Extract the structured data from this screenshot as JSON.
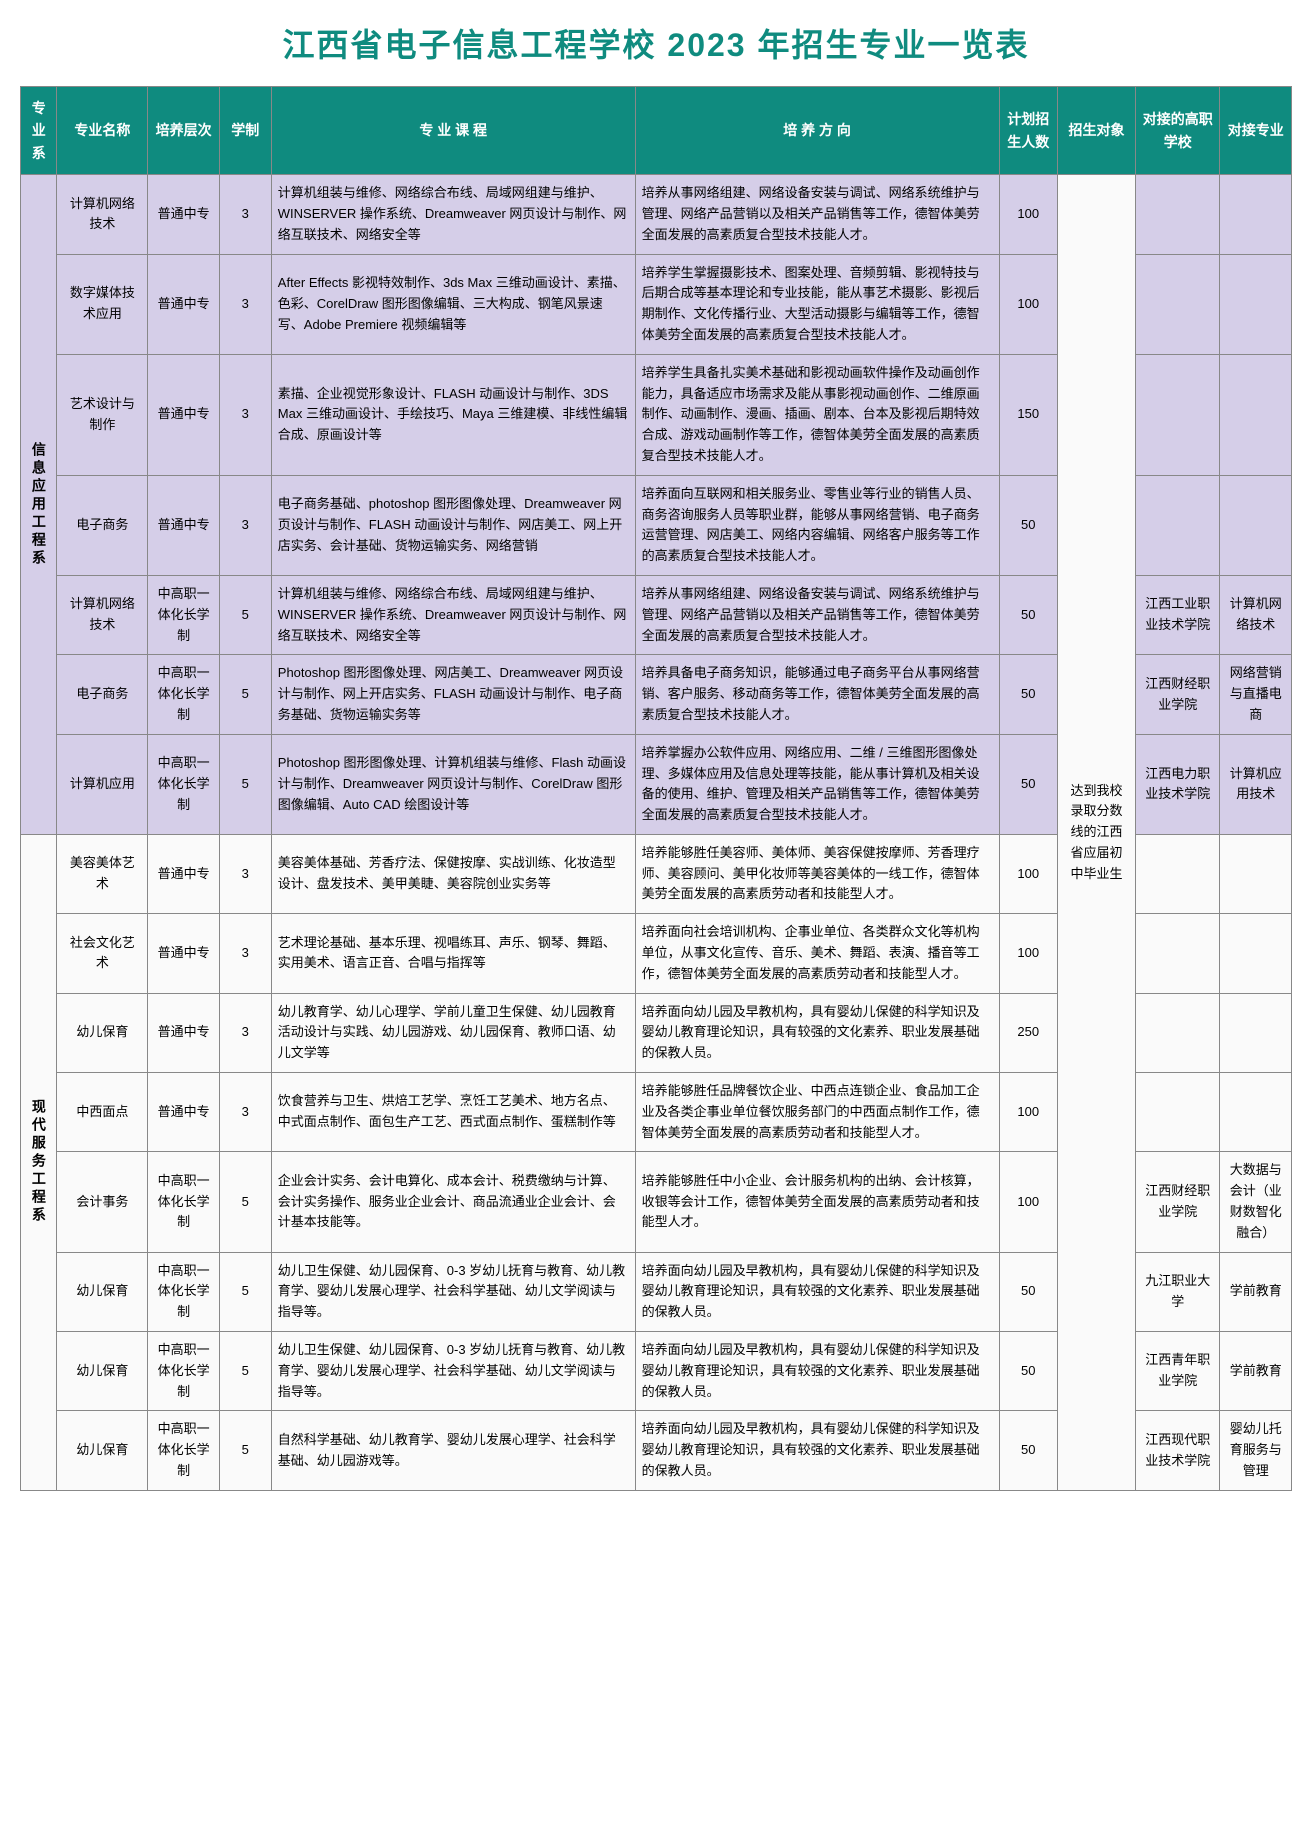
{
  "title": "江西省电子信息工程学校 2023 年招生专业一览表",
  "colors": {
    "header_bg": "#0f8b7f",
    "header_fg": "#ffffff",
    "title_color": "#0f8b7f",
    "section1_bg": "#d5cee8",
    "section2_bg": "#fafafa",
    "border": "#888888"
  },
  "headers": {
    "dept": "专业系",
    "major": "专业名称",
    "level": "培养层次",
    "years": "学制",
    "courses": "专 业 课 程",
    "direction": "培 养 方 向",
    "count": "计划招生人数",
    "target": "招生对象",
    "college": "对接的高职学校",
    "connect": "对接专业"
  },
  "target_text": "达到我校录取分数线的江西省应届初中毕业生",
  "dept1": "信息应用工程系",
  "dept2": "现代服务工程系",
  "rows1": [
    {
      "major": "计算机网络技术",
      "level": "普通中专",
      "years": "3",
      "courses": "计算机组装与维修、网络综合布线、局域网组建与维护、WINSERVER 操作系统、Dreamweaver 网页设计与制作、网络互联技术、网络安全等",
      "direction": "培养从事网络组建、网络设备安装与调试、网络系统维护与管理、网络产品营销以及相关产品销售等工作，德智体美劳全面发展的高素质复合型技术技能人才。",
      "count": "100",
      "college": "",
      "connect": ""
    },
    {
      "major": "数字媒体技术应用",
      "level": "普通中专",
      "years": "3",
      "courses": "After Effects 影视特效制作、3ds Max 三维动画设计、素描、色彩、CorelDraw 图形图像编辑、三大构成、钢笔风景速写、Adobe Premiere 视频编辑等",
      "direction": "培养学生掌握摄影技术、图案处理、音频剪辑、影视特技与后期合成等基本理论和专业技能，能从事艺术摄影、影视后期制作、文化传播行业、大型活动摄影与编辑等工作，德智体美劳全面发展的高素质复合型技术技能人才。",
      "count": "100",
      "college": "",
      "connect": ""
    },
    {
      "major": "艺术设计与制作",
      "level": "普通中专",
      "years": "3",
      "courses": "素描、企业视觉形象设计、FLASH 动画设计与制作、3DS Max 三维动画设计、手绘技巧、Maya 三维建模、非线性编辑合成、原画设计等",
      "direction": "培养学生具备扎实美术基础和影视动画软件操作及动画创作能力，具备适应市场需求及能从事影视动画创作、二维原画制作、动画制作、漫画、插画、剧本、台本及影视后期特效合成、游戏动画制作等工作，德智体美劳全面发展的高素质复合型技术技能人才。",
      "count": "150",
      "college": "",
      "connect": ""
    },
    {
      "major": "电子商务",
      "level": "普通中专",
      "years": "3",
      "courses": "电子商务基础、photoshop 图形图像处理、Dreamweaver 网页设计与制作、FLASH 动画设计与制作、网店美工、网上开店实务、会计基础、货物运输实务、网络营销",
      "direction": "培养面向互联网和相关服务业、零售业等行业的销售人员、商务咨询服务人员等职业群，能够从事网络营销、电子商务运营管理、网店美工、网络内容编辑、网络客户服务等工作的高素质复合型技术技能人才。",
      "count": "50",
      "college": "",
      "connect": ""
    },
    {
      "major": "计算机网络技术",
      "level": "中高职一体化长学制",
      "years": "5",
      "courses": "计算机组装与维修、网络综合布线、局域网组建与维护、WINSERVER 操作系统、Dreamweaver 网页设计与制作、网络互联技术、网络安全等",
      "direction": "培养从事网络组建、网络设备安装与调试、网络系统维护与管理、网络产品营销以及相关产品销售等工作，德智体美劳全面发展的高素质复合型技术技能人才。",
      "count": "50",
      "college": "江西工业职业技术学院",
      "connect": "计算机网络技术"
    },
    {
      "major": "电子商务",
      "level": "中高职一体化长学制",
      "years": "5",
      "courses": "Photoshop 图形图像处理、网店美工、Dreamweaver 网页设计与制作、网上开店实务、FLASH 动画设计与制作、电子商务基础、货物运输实务等",
      "direction": "培养具备电子商务知识，能够通过电子商务平台从事网络营销、客户服务、移动商务等工作，德智体美劳全面发展的高素质复合型技术技能人才。",
      "count": "50",
      "college": "江西财经职业学院",
      "connect": "网络营销与直播电商"
    },
    {
      "major": "计算机应用",
      "level": "中高职一体化长学制",
      "years": "5",
      "courses": "Photoshop 图形图像处理、计算机组装与维修、Flash 动画设计与制作、Dreamweaver 网页设计与制作、CorelDraw 图形图像编辑、Auto CAD 绘图设计等",
      "direction": "培养掌握办公软件应用、网络应用、二维 / 三维图形图像处理、多媒体应用及信息处理等技能，能从事计算机及相关设备的使用、维护、管理及相关产品销售等工作，德智体美劳全面发展的高素质复合型技术技能人才。",
      "count": "50",
      "college": "江西电力职业技术学院",
      "connect": "计算机应用技术"
    }
  ],
  "rows2": [
    {
      "major": "美容美体艺术",
      "level": "普通中专",
      "years": "3",
      "courses": "美容美体基础、芳香疗法、保健按摩、实战训练、化妆造型设计、盘发技术、美甲美睫、美容院创业实务等",
      "direction": "培养能够胜任美容师、美体师、美容保健按摩师、芳香理疗师、美容顾问、美甲化妆师等美容美体的一线工作，德智体美劳全面发展的高素质劳动者和技能型人才。",
      "count": "100",
      "college": "",
      "connect": ""
    },
    {
      "major": "社会文化艺术",
      "level": "普通中专",
      "years": "3",
      "courses": "艺术理论基础、基本乐理、视唱练耳、声乐、钢琴、舞蹈、实用美术、语言正音、合唱与指挥等",
      "direction": "培养面向社会培训机构、企事业单位、各类群众文化等机构单位，从事文化宣传、音乐、美术、舞蹈、表演、播音等工作，德智体美劳全面发展的高素质劳动者和技能型人才。",
      "count": "100",
      "college": "",
      "connect": ""
    },
    {
      "major": "幼儿保育",
      "level": "普通中专",
      "years": "3",
      "courses": "幼儿教育学、幼儿心理学、学前儿童卫生保健、幼儿园教育活动设计与实践、幼儿园游戏、幼儿园保育、教师口语、幼儿文学等",
      "direction": "培养面向幼儿园及早教机构，具有婴幼儿保健的科学知识及婴幼儿教育理论知识，具有较强的文化素养、职业发展基础的保教人员。",
      "count": "250",
      "college": "",
      "connect": ""
    },
    {
      "major": "中西面点",
      "level": "普通中专",
      "years": "3",
      "courses": "饮食营养与卫生、烘焙工艺学、烹饪工艺美术、地方名点、中式面点制作、面包生产工艺、西式面点制作、蛋糕制作等",
      "direction": "培养能够胜任品牌餐饮企业、中西点连锁企业、食品加工企业及各类企事业单位餐饮服务部门的中西面点制作工作，德智体美劳全面发展的高素质劳动者和技能型人才。",
      "count": "100",
      "college": "",
      "connect": ""
    },
    {
      "major": "会计事务",
      "level": "中高职一体化长学制",
      "years": "5",
      "courses": "企业会计实务、会计电算化、成本会计、税费缴纳与计算、会计实务操作、服务业企业会计、商品流通业企业会计、会计基本技能等。",
      "direction": "培养能够胜任中小企业、会计服务机构的出纳、会计核算，收银等会计工作，德智体美劳全面发展的高素质劳动者和技能型人才。",
      "count": "100",
      "college": "江西财经职业学院",
      "connect": "大数据与会计（业财数智化融合）"
    },
    {
      "major": "幼儿保育",
      "level": "中高职一体化长学制",
      "years": "5",
      "courses": "幼儿卫生保健、幼儿园保育、0-3 岁幼儿抚育与教育、幼儿教育学、婴幼儿发展心理学、社会科学基础、幼儿文学阅读与指导等。",
      "direction": "培养面向幼儿园及早教机构，具有婴幼儿保健的科学知识及婴幼儿教育理论知识，具有较强的文化素养、职业发展基础的保教人员。",
      "count": "50",
      "college": "九江职业大学",
      "connect": "学前教育"
    },
    {
      "major": "幼儿保育",
      "level": "中高职一体化长学制",
      "years": "5",
      "courses": "幼儿卫生保健、幼儿园保育、0-3 岁幼儿抚育与教育、幼儿教育学、婴幼儿发展心理学、社会科学基础、幼儿文学阅读与指导等。",
      "direction": "培养面向幼儿园及早教机构，具有婴幼儿保健的科学知识及婴幼儿教育理论知识，具有较强的文化素养、职业发展基础的保教人员。",
      "count": "50",
      "college": "江西青年职业学院",
      "connect": "学前教育"
    },
    {
      "major": "幼儿保育",
      "level": "中高职一体化长学制",
      "years": "5",
      "courses": "自然科学基础、幼儿教育学、婴幼儿发展心理学、社会科学基础、幼儿园游戏等。",
      "direction": "培养面向幼儿园及早教机构，具有婴幼儿保健的科学知识及婴幼儿教育理论知识，具有较强的文化素养、职业发展基础的保教人员。",
      "count": "50",
      "college": "江西现代职业技术学院",
      "connect": "婴幼儿托育服务与管理"
    }
  ]
}
